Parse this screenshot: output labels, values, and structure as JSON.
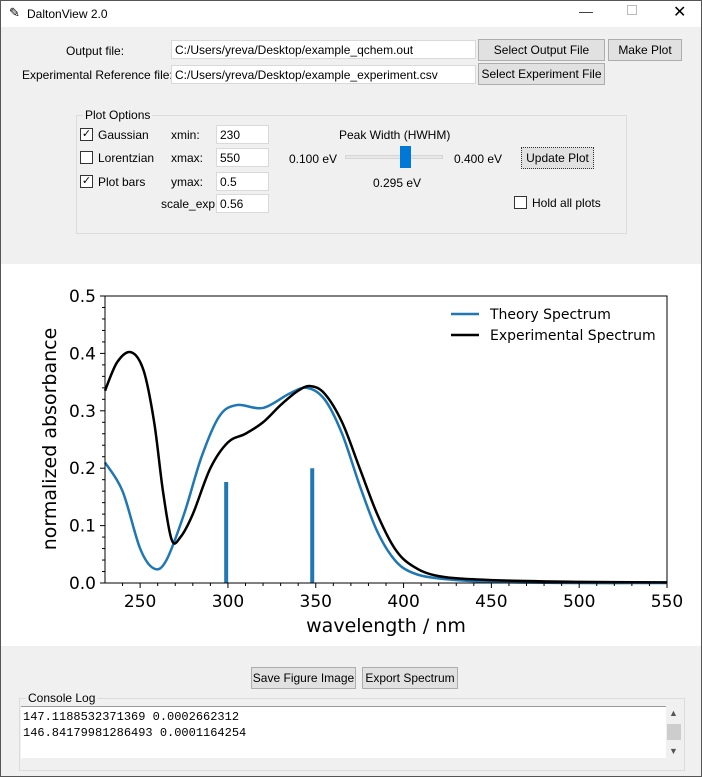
{
  "window": {
    "title": "DaltonView 2.0",
    "icon": "feather-icon"
  },
  "files": {
    "output_label": "Output file:",
    "output_value": "C:/Users/yreva/Desktop/example_qchem.out",
    "select_output": "Select Output File",
    "make_plot": "Make Plot",
    "exp_label": "Experimental Reference file:",
    "exp_value": "C:/Users/yreva/Desktop/example_experiment.csv",
    "select_exp": "Select Experiment File"
  },
  "options": {
    "title": "Plot Options",
    "gaussian": {
      "label": "Gaussian",
      "checked": true
    },
    "lorentzian": {
      "label": "Lorentzian",
      "checked": false
    },
    "bars": {
      "label": "Plot bars",
      "checked": true
    },
    "xmin_label": "xmin:",
    "xmin": "230",
    "xmax_label": "xmax:",
    "xmax": "550",
    "ymax_label": "ymax:",
    "ymax": "0.5",
    "scale_label": "scale_exp:",
    "scale": "0.56",
    "peak_title": "Peak Width (HWHM)",
    "slider_min": "0.100 eV",
    "slider_max": "0.400 eV",
    "slider_value": "0.295 eV",
    "slider_fraction": 0.65,
    "update": "Update Plot",
    "hold": {
      "label": "Hold all plots",
      "checked": false
    }
  },
  "bottom": {
    "save": "Save Figure Image",
    "export": "Export Spectrum",
    "console_title": "Console Log",
    "console_lines": [
      "147.1188532371369 0.0002662312",
      "146.84179981286493 0.0001164254"
    ]
  },
  "chart_data": {
    "type": "line",
    "xlabel": "wavelength / nm",
    "ylabel": "normalized absorbance",
    "xlim": [
      230,
      550
    ],
    "ylim": [
      0,
      0.5
    ],
    "xticks": [
      "250",
      "300",
      "350",
      "400",
      "450",
      "500",
      "550"
    ],
    "yticks": [
      "0.0",
      "0.1",
      "0.2",
      "0.3",
      "0.4",
      "0.5"
    ],
    "legend_position": "top-right",
    "series": [
      {
        "name": "Theory Spectrum",
        "color": "#1f77b4",
        "x": [
          230,
          240,
          250,
          258,
          265,
          275,
          285,
          295,
          305,
          320,
          335,
          345,
          355,
          365,
          375,
          385,
          395,
          405,
          420,
          450,
          500,
          550
        ],
        "y": [
          0.21,
          0.16,
          0.06,
          0.025,
          0.04,
          0.12,
          0.22,
          0.29,
          0.31,
          0.305,
          0.33,
          0.34,
          0.32,
          0.26,
          0.17,
          0.09,
          0.04,
          0.018,
          0.008,
          0.002,
          0,
          0
        ]
      },
      {
        "name": "Experimental Spectrum",
        "color": "#000000",
        "x": [
          230,
          237,
          245,
          252,
          258,
          263,
          268,
          273,
          280,
          290,
          300,
          310,
          320,
          330,
          340,
          347,
          355,
          365,
          375,
          385,
          395,
          405,
          420,
          450,
          500,
          550
        ],
        "y": [
          0.335,
          0.385,
          0.402,
          0.37,
          0.28,
          0.16,
          0.075,
          0.08,
          0.12,
          0.2,
          0.245,
          0.26,
          0.28,
          0.31,
          0.335,
          0.343,
          0.33,
          0.28,
          0.2,
          0.12,
          0.06,
          0.03,
          0.012,
          0.005,
          0.002,
          0.001
        ]
      }
    ],
    "bars": {
      "color": "#1f77b4",
      "x": [
        299,
        348
      ],
      "y": [
        0.176,
        0.2
      ]
    }
  }
}
